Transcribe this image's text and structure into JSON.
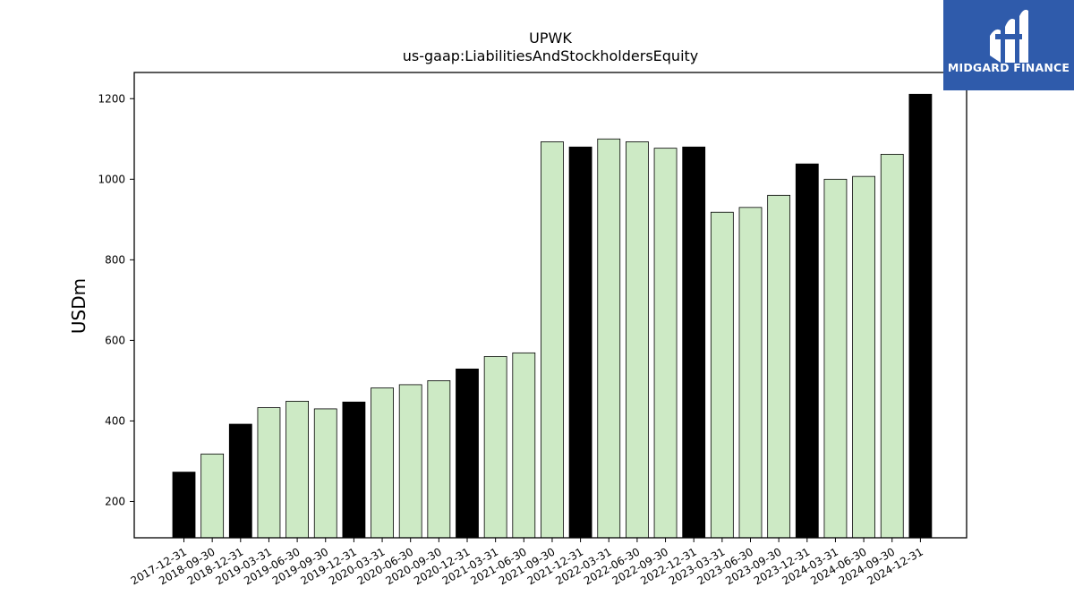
{
  "logo": {
    "text": "MIDGARD FINANCE",
    "color": "#2f5bab"
  },
  "chart_data": {
    "type": "bar",
    "title": "UPWK",
    "subtitle": "us-gaap:LiabilitiesAndStockholdersEquity",
    "ylabel": "USDm",
    "xlabel": "",
    "ylim": [
      110,
      1265
    ],
    "yticks": [
      200,
      400,
      600,
      800,
      1000,
      1200
    ],
    "grid": false,
    "categories": [
      "2017-12-31",
      "2018-09-30",
      "2018-12-31",
      "2019-03-31",
      "2019-06-30",
      "2019-09-30",
      "2019-12-31",
      "2020-03-31",
      "2020-06-30",
      "2020-09-30",
      "2020-12-31",
      "2021-03-31",
      "2021-06-30",
      "2021-09-30",
      "2021-12-31",
      "2022-03-31",
      "2022-06-30",
      "2022-09-30",
      "2022-12-31",
      "2023-03-31",
      "2023-06-30",
      "2023-09-30",
      "2023-12-31",
      "2024-03-31",
      "2024-06-30",
      "2024-09-30",
      "2024-12-31"
    ],
    "values": [
      273,
      318,
      392,
      433,
      449,
      430,
      447,
      482,
      490,
      500,
      529,
      560,
      569,
      1093,
      1080,
      1100,
      1093,
      1077,
      1080,
      918,
      930,
      960,
      1038,
      1000,
      1007,
      1062,
      1211
    ],
    "annual_color": "#000000",
    "quarterly_color": "#cdeac5"
  }
}
